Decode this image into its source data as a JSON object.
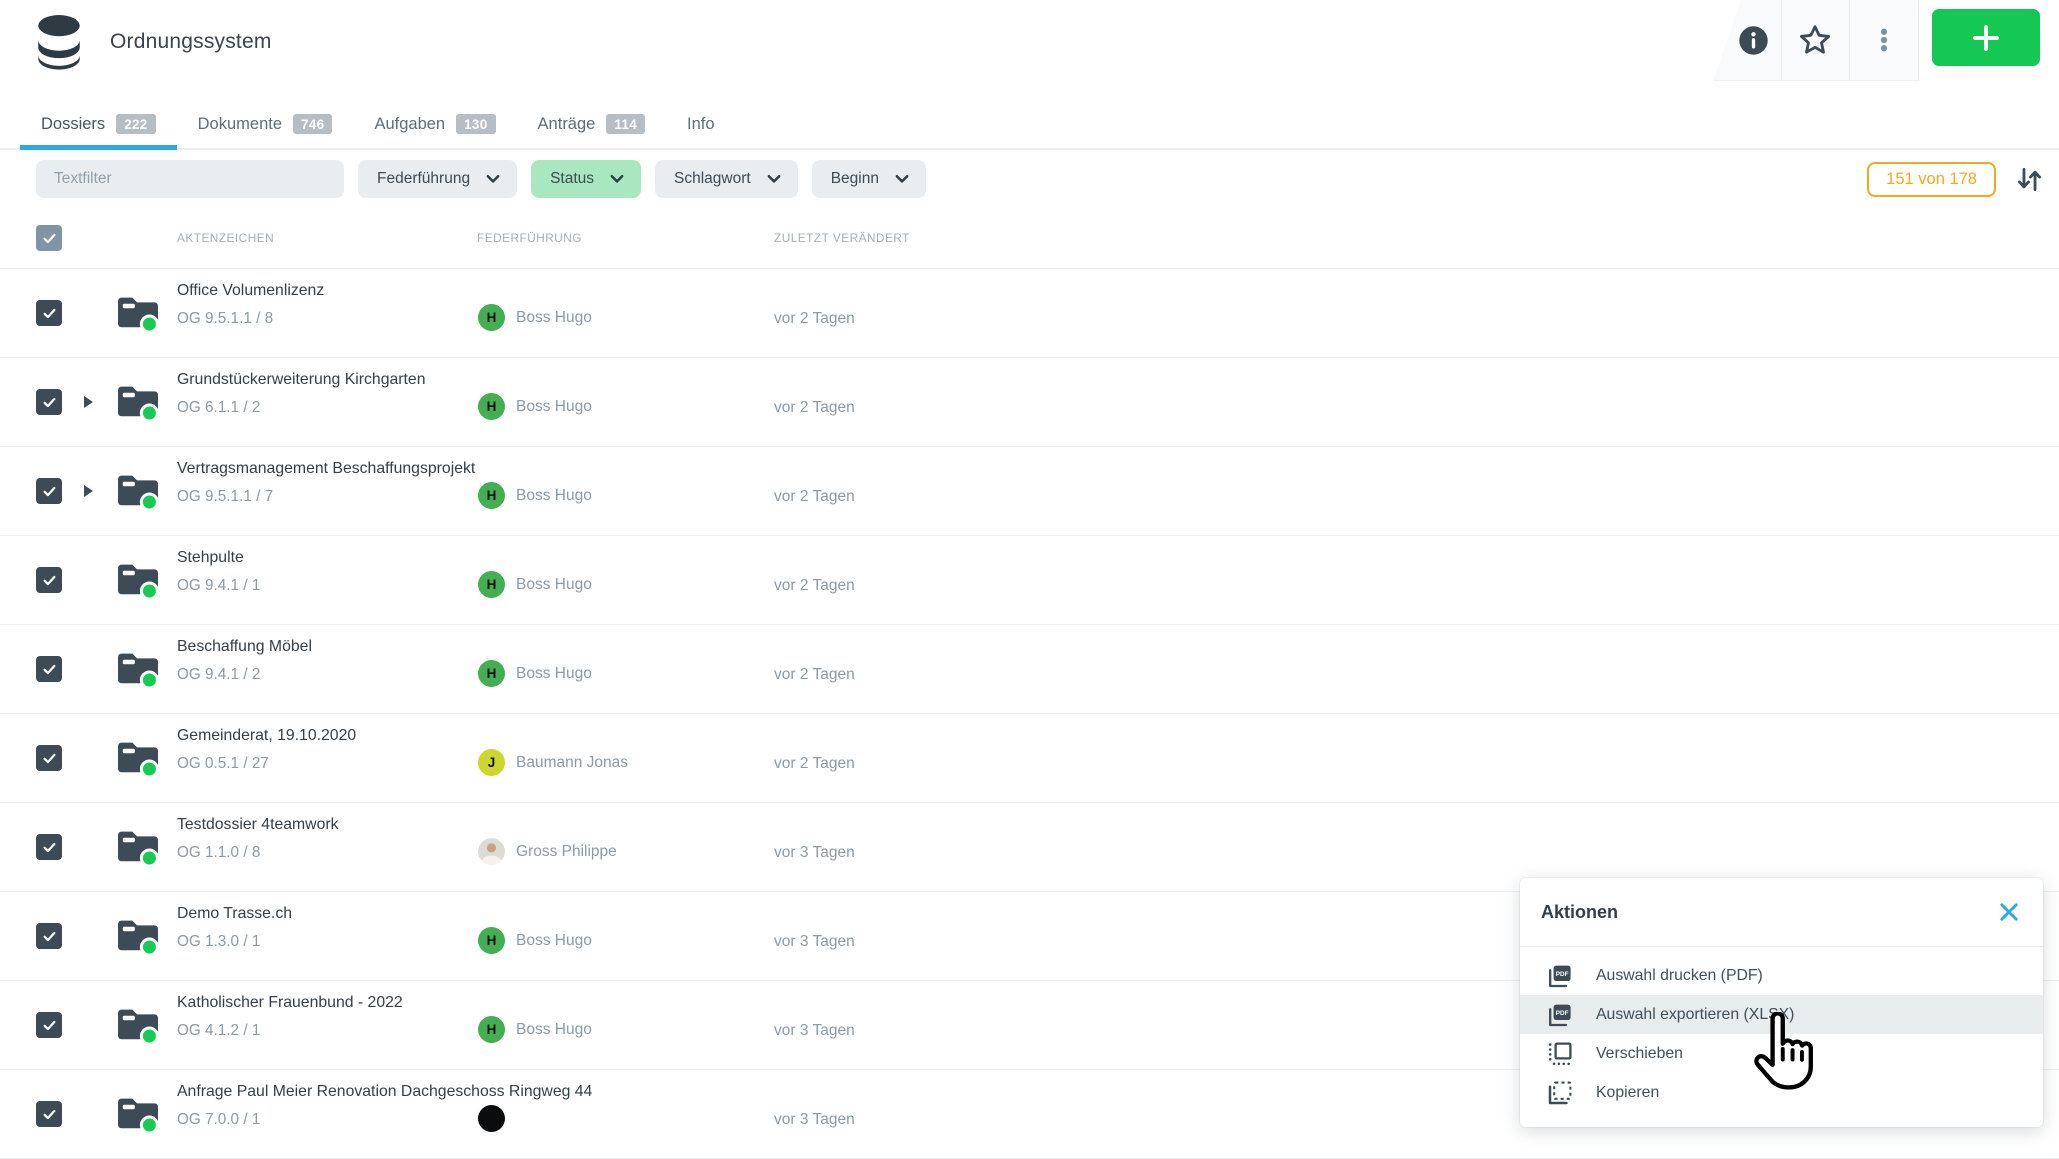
{
  "app": {
    "title": "Ordnungssystem"
  },
  "header_icons": [
    "info-icon",
    "star-icon",
    "kebab-menu-icon"
  ],
  "add_button": {
    "icon": "plus-icon"
  },
  "tabs": [
    {
      "label": "Dossiers",
      "count": "222",
      "active": true
    },
    {
      "label": "Dokumente",
      "count": "746",
      "active": false
    },
    {
      "label": "Aufgaben",
      "count": "130",
      "active": false
    },
    {
      "label": "Anträge",
      "count": "114",
      "active": false
    },
    {
      "label": "Info",
      "count": null,
      "active": false
    }
  ],
  "filter_bar": {
    "text_placeholder": "Textfilter",
    "chips": [
      {
        "label": "Federführung",
        "active": false
      },
      {
        "label": "Status",
        "active": true
      },
      {
        "label": "Schlagwort",
        "active": false
      },
      {
        "label": "Beginn",
        "active": false
      }
    ],
    "result_count": "151 von 178",
    "sort_icon": "sort-icon"
  },
  "table": {
    "columns": [
      "AKTENZEICHEN",
      "FEDERFÜHRUNG",
      "ZULETZT VERÄNDERT"
    ],
    "select_all_checked": true,
    "rows": [
      {
        "title": "Office Volumenlizenz",
        "reference": "OG 9.5.1.1 / 8",
        "owner": {
          "name": "Boss Hugo",
          "avatar": "initial",
          "letter": "H",
          "color": "#43ae52"
        },
        "modified": "vor 2 Tagen",
        "expandable": false,
        "checked": true
      },
      {
        "title": "Grundstückerweiterung Kirchgarten",
        "reference": "OG 6.1.1 / 2",
        "owner": {
          "name": "Boss Hugo",
          "avatar": "initial",
          "letter": "H",
          "color": "#43ae52"
        },
        "modified": "vor 2 Tagen",
        "expandable": true,
        "checked": true
      },
      {
        "title": "Vertragsmanagement Beschaffungsprojekt",
        "reference": "OG 9.5.1.1 / 7",
        "owner": {
          "name": "Boss Hugo",
          "avatar": "initial",
          "letter": "H",
          "color": "#43ae52"
        },
        "modified": "vor 2 Tagen",
        "expandable": true,
        "checked": true
      },
      {
        "title": "Stehpulte",
        "reference": "OG 9.4.1 / 1",
        "owner": {
          "name": "Boss Hugo",
          "avatar": "initial",
          "letter": "H",
          "color": "#43ae52"
        },
        "modified": "vor 2 Tagen",
        "expandable": false,
        "checked": true
      },
      {
        "title": "Beschaffung Möbel",
        "reference": "OG 9.4.1 / 2",
        "owner": {
          "name": "Boss Hugo",
          "avatar": "initial",
          "letter": "H",
          "color": "#43ae52"
        },
        "modified": "vor 2 Tagen",
        "expandable": false,
        "checked": true
      },
      {
        "title": "Gemeinderat, 19.10.2020",
        "reference": "OG 0.5.1 / 27",
        "owner": {
          "name": "Baumann Jonas",
          "avatar": "initial",
          "letter": "J",
          "color": "#ccd62f"
        },
        "modified": "vor 2 Tagen",
        "expandable": false,
        "checked": true
      },
      {
        "title": "Testdossier 4teamwork",
        "reference": "OG 1.1.0 / 8",
        "owner": {
          "name": "Gross Philippe",
          "avatar": "photo",
          "letter": "",
          "color": ""
        },
        "modified": "vor 3 Tagen",
        "expandable": false,
        "checked": true
      },
      {
        "title": "Demo Trasse.ch",
        "reference": "OG 1.3.0 / 1",
        "owner": {
          "name": "Boss Hugo",
          "avatar": "initial",
          "letter": "H",
          "color": "#43ae52"
        },
        "modified": "vor 3 Tagen",
        "expandable": false,
        "checked": true
      },
      {
        "title": "Katholischer Frauenbund - 2022",
        "reference": "OG 4.1.2 / 1",
        "owner": {
          "name": "Boss Hugo",
          "avatar": "initial",
          "letter": "H",
          "color": "#43ae52"
        },
        "modified": "vor 3 Tagen",
        "expandable": false,
        "checked": true
      },
      {
        "title": "Anfrage Paul Meier Renovation Dachgeschoss Ringweg 44",
        "reference": "OG 7.0.0 / 1",
        "owner": {
          "name": "",
          "avatar": "dark",
          "letter": "",
          "color": "#0b0c0d"
        },
        "modified": "vor 3 Tagen",
        "expandable": false,
        "checked": true
      }
    ]
  },
  "popup": {
    "title": "Aktionen",
    "close_icon": "close-icon",
    "cursor": "hand-cursor-icon",
    "items": [
      {
        "label": "Auswahl drucken (PDF)",
        "icon": "pdf-document-icon",
        "highlighted": false
      },
      {
        "label": "Auswahl exportieren (XLSX)",
        "icon": "pdf-document-icon",
        "highlighted": true
      },
      {
        "label": "Verschieben",
        "icon": "move-icon",
        "highlighted": false
      },
      {
        "label": "Kopieren",
        "icon": "copy-icon",
        "highlighted": false
      }
    ]
  },
  "colors": {
    "accent_blue": "#29abe2",
    "action_green": "#14c853",
    "status_chip_green": "#a9e7c0",
    "count_orange": "#f5a623",
    "dark_slate": "#3c4b55",
    "muted_text": "#8b9aa5"
  }
}
